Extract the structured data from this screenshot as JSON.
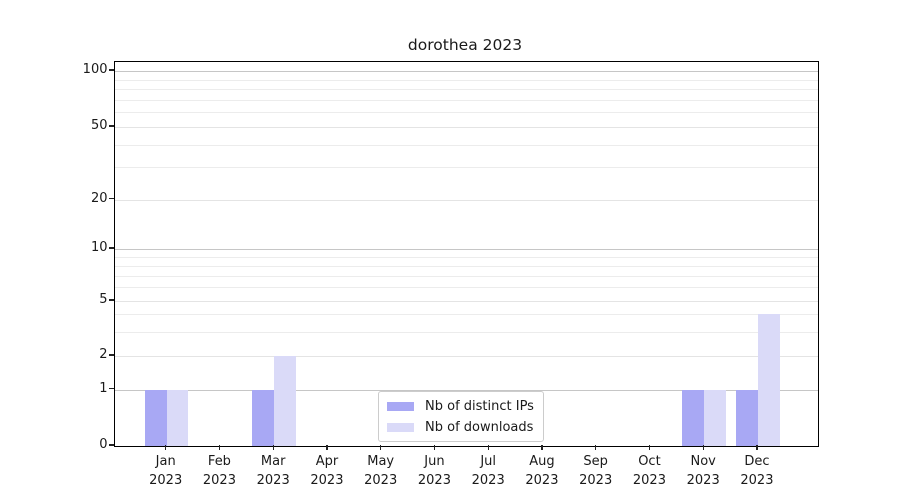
{
  "chart_data": {
    "type": "bar",
    "title": "dorothea 2023",
    "categories": [
      {
        "month": "Jan",
        "year": "2023"
      },
      {
        "month": "Feb",
        "year": "2023"
      },
      {
        "month": "Mar",
        "year": "2023"
      },
      {
        "month": "Apr",
        "year": "2023"
      },
      {
        "month": "May",
        "year": "2023"
      },
      {
        "month": "Jun",
        "year": "2023"
      },
      {
        "month": "Jul",
        "year": "2023"
      },
      {
        "month": "Aug",
        "year": "2023"
      },
      {
        "month": "Sep",
        "year": "2023"
      },
      {
        "month": "Oct",
        "year": "2023"
      },
      {
        "month": "Nov",
        "year": "2023"
      },
      {
        "month": "Dec",
        "year": "2023"
      }
    ],
    "series": [
      {
        "name": "Nb of distinct IPs",
        "color": "#a8a8f4",
        "values": [
          1,
          0,
          1,
          0,
          0,
          0,
          0,
          0,
          0,
          0,
          1,
          1
        ]
      },
      {
        "name": "Nb of downloads",
        "color": "#dadaf8",
        "values": [
          1,
          0,
          2,
          0,
          0,
          0,
          0,
          0,
          0,
          0,
          1,
          4
        ]
      }
    ],
    "y_axis": {
      "scale": "log-like",
      "ticks": [
        0,
        1,
        2,
        5,
        10,
        20,
        50,
        100
      ],
      "decade_ticks": [
        1,
        10,
        100
      ],
      "minor_gridlines": [
        3,
        4,
        6,
        7,
        8,
        9,
        30,
        40,
        60,
        70,
        80,
        90
      ],
      "range": [
        0,
        120
      ]
    },
    "x_axis": {
      "tick_label_lines": 2
    },
    "legend": {
      "position": "lower center"
    },
    "grid": true,
    "colors": {
      "decade_grid": "#c6c6c6",
      "labeled_grid": "#e4e4e4",
      "minor_grid": "#ececec",
      "spine": "#000000",
      "text": "#1a1a1a",
      "background": "#ffffff"
    }
  }
}
